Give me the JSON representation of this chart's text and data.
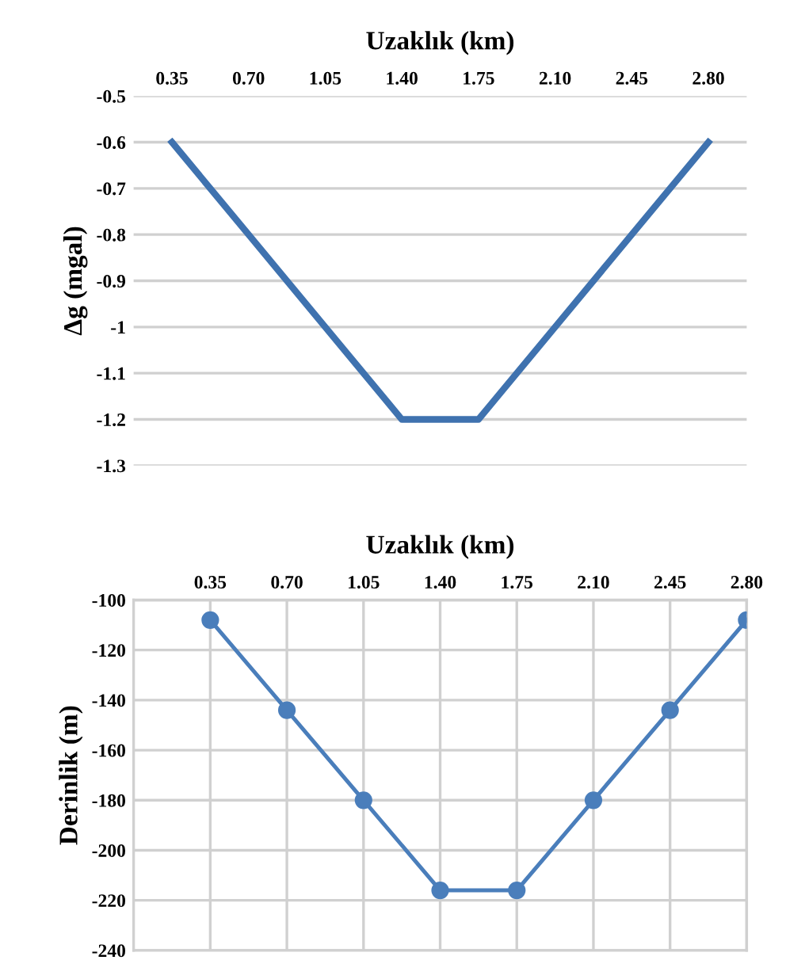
{
  "chart_data": [
    {
      "type": "line",
      "xlabel": "Uzaklık (km)",
      "ylabel": "Δg (mgal)",
      "categories": [
        "0.35",
        "0.70",
        "1.05",
        "1.40",
        "1.75",
        "2.10",
        "2.45",
        "2.80"
      ],
      "series": [
        {
          "color": "#3f72af",
          "values": [
            -0.6,
            -0.8,
            -1.0,
            -1.2,
            -1.2,
            -1.0,
            -0.8,
            -0.6
          ]
        }
      ],
      "ylim": [
        -1.3,
        -0.5
      ],
      "yticks": [
        -1.3,
        -1.2,
        -1.1,
        -1,
        -0.9,
        -0.8,
        -0.7,
        -0.6,
        -0.5
      ],
      "grid": "y",
      "marker": "none",
      "line_style": "solid"
    },
    {
      "type": "line",
      "xlabel": "Uzaklık (km)",
      "ylabel": "Derinlik (m)",
      "x": [
        0.35,
        0.7,
        1.05,
        1.4,
        1.75,
        2.1,
        2.45,
        2.8
      ],
      "series": [
        {
          "color": "#4a7ebb",
          "values": [
            -108,
            -144,
            -180,
            -216,
            -216,
            -180,
            -144,
            -108
          ]
        }
      ],
      "xlim": [
        0,
        2.8
      ],
      "xticks": [
        {
          "value": 0.35,
          "label": "0.35"
        },
        {
          "value": 0.7,
          "label": "0.70"
        },
        {
          "value": 1.05,
          "label": "1.05"
        },
        {
          "value": 1.4,
          "label": "1.40"
        },
        {
          "value": 1.75,
          "label": "1.75"
        },
        {
          "value": 2.1,
          "label": "2.10"
        },
        {
          "value": 2.45,
          "label": "2.45"
        },
        {
          "value": 2.8,
          "label": "2.80"
        }
      ],
      "ylim": [
        -240,
        -100
      ],
      "yticks": [
        -240,
        -220,
        -200,
        -180,
        -160,
        -140,
        -120,
        -100
      ],
      "grid": true,
      "marker": "circle",
      "line_style": "solid"
    }
  ]
}
